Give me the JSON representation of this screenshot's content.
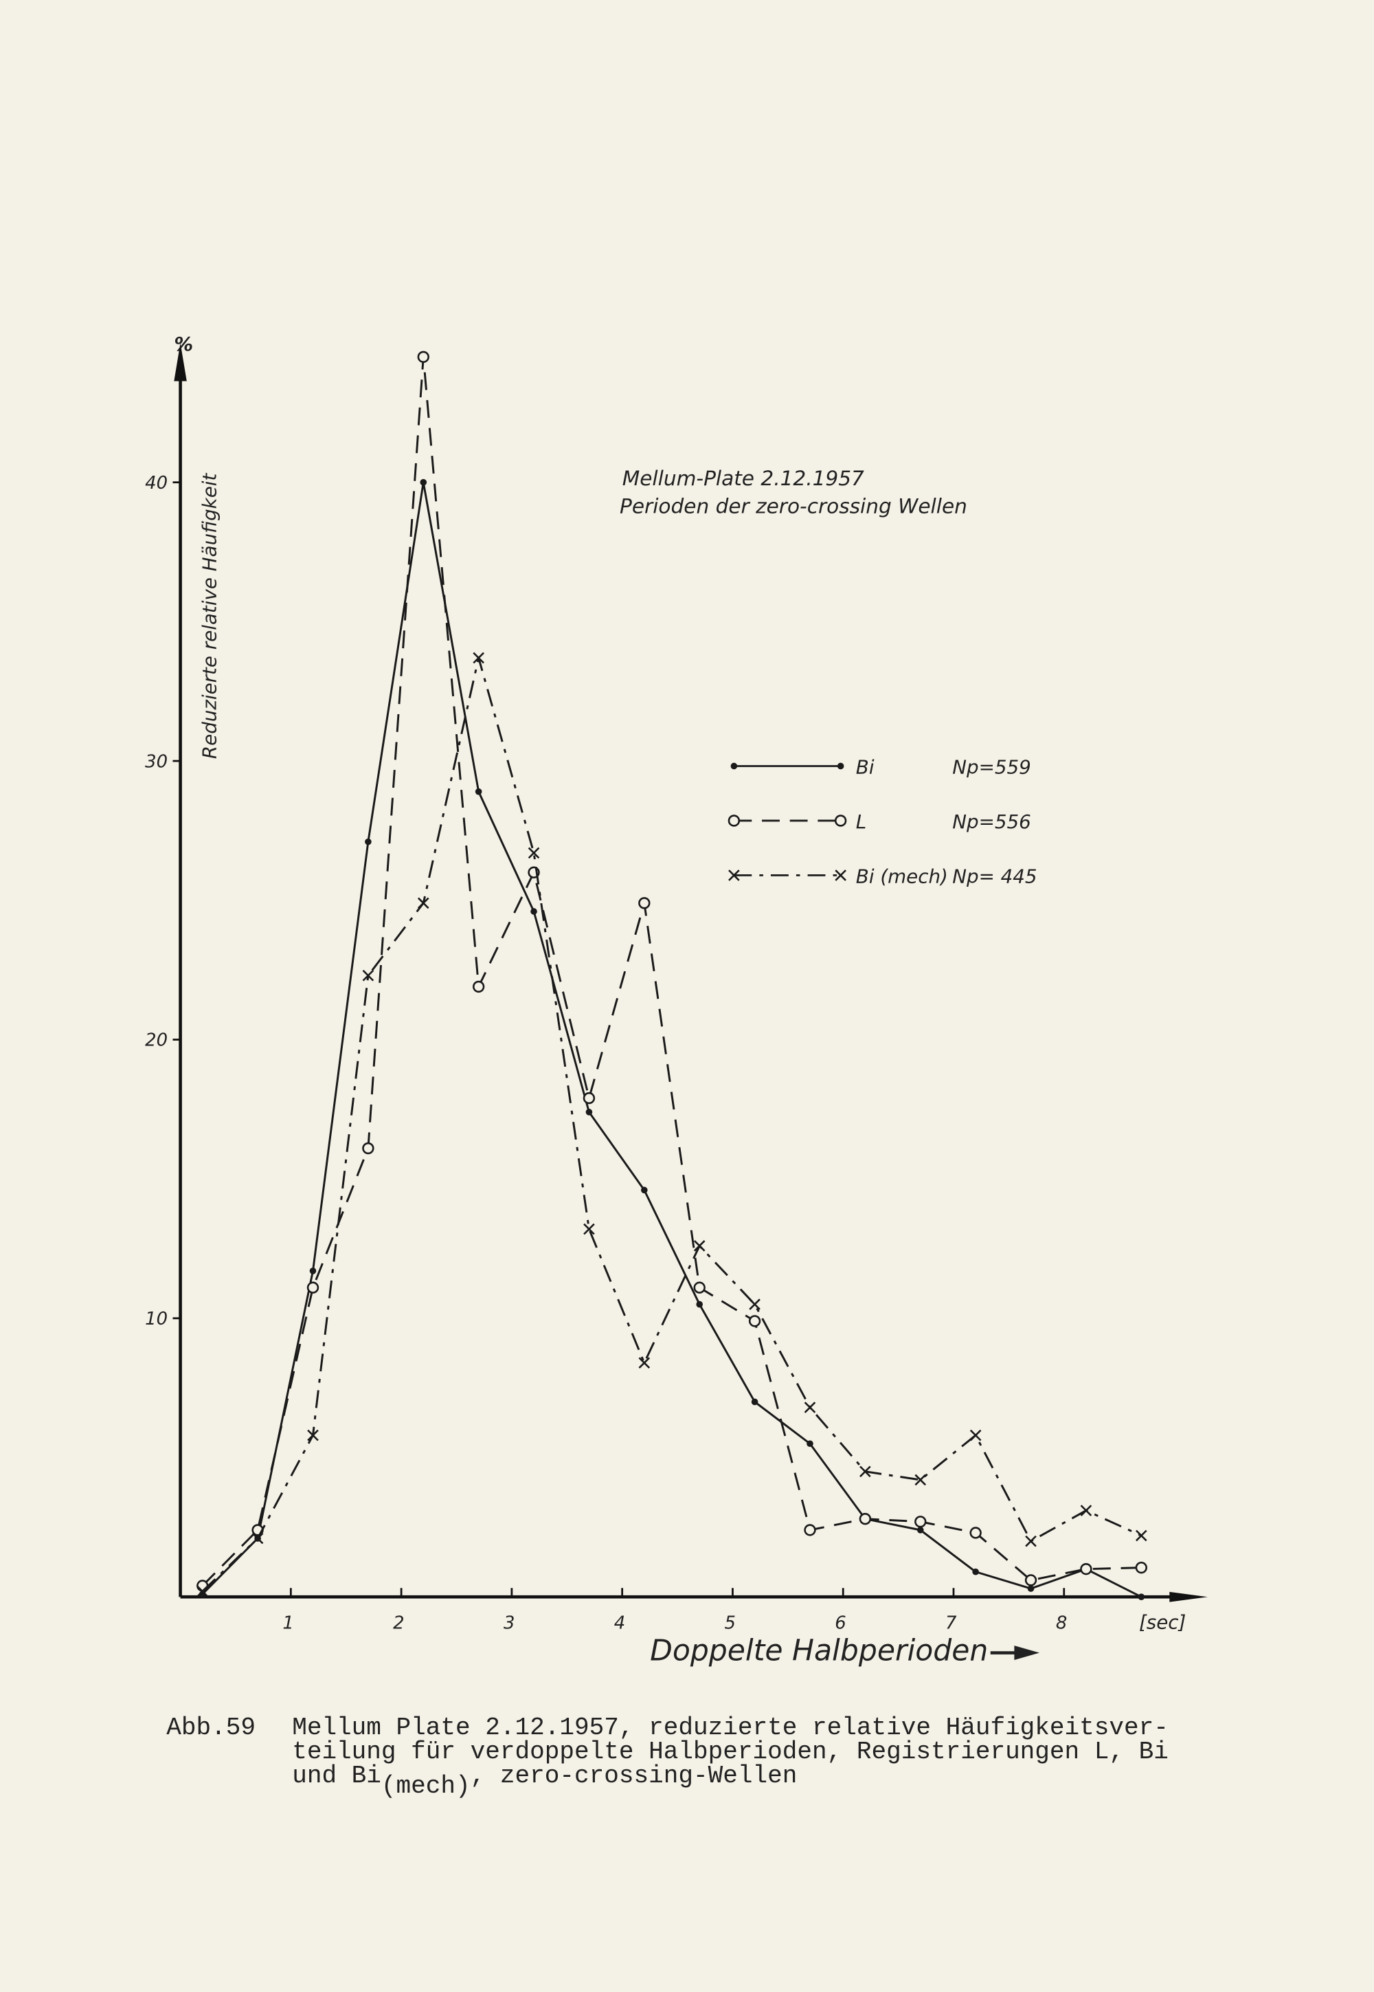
{
  "chart_data": {
    "type": "line",
    "title": "Mellum-Plate 2.12.1957",
    "subtitle": "Perioden der zero-crossing Wellen",
    "y_unit": "%",
    "y_label": "Reduzierte relative Häufigkeit",
    "x_label": "Doppelte Halbperioden",
    "x_unit": "[sec]",
    "x": [
      0.2,
      0.7,
      1.2,
      1.7,
      2.2,
      2.7,
      3.2,
      3.7,
      4.2,
      4.7,
      5.2,
      5.7,
      6.2,
      6.7,
      7.2,
      7.7,
      8.2,
      8.7
    ],
    "xlim": [
      0,
      9.3
    ],
    "xticks": [
      1,
      2,
      3,
      4,
      5,
      6,
      7,
      8
    ],
    "ylim": [
      0,
      45
    ],
    "yticks": [
      10,
      20,
      30,
      40
    ],
    "series": [
      {
        "name": "Bi",
        "np": "Np=559",
        "color": "#1a1a1a",
        "style": "solid",
        "marker": "dot",
        "values": [
          0.1,
          2.1,
          11.7,
          27.1,
          40,
          28.9,
          24.6,
          17.4,
          14.6,
          10.5,
          7.0,
          5.5,
          2.8,
          2.4,
          0.9,
          0.3,
          1.0,
          0
        ]
      },
      {
        "name": "L",
        "np": "Np=556",
        "color": "#1a1a1a",
        "style": "dashed",
        "marker": "circle",
        "values": [
          0.4,
          2.4,
          11.1,
          16.1,
          44.5,
          21.9,
          26.0,
          17.9,
          24.9,
          11.1,
          9.9,
          2.4,
          2.8,
          2.7,
          2.3,
          0.6,
          1.0,
          1.05
        ]
      },
      {
        "name": "Bi (mech)",
        "np": "Np= 445",
        "color": "#1a1a1a",
        "style": "dashdot",
        "marker": "x",
        "values": [
          0.2,
          2.1,
          5.8,
          22.3,
          24.9,
          33.7,
          26.7,
          13.2,
          8.4,
          12.6,
          10.5,
          6.8,
          4.5,
          4.2,
          5.8,
          2.0,
          3.1,
          2.2
        ]
      }
    ]
  },
  "caption": {
    "label": "Abb.59",
    "line1": "Mellum Plate 2.12.1957, reduzierte relative Häufigkeitsver-",
    "line2": "teilung für verdoppelte Halbperioden, Registrierungen L, Bi",
    "line3_start": "und Bi",
    "line3_sub": "(mech)",
    "line3_end": ", zero-crossing-Wellen"
  }
}
